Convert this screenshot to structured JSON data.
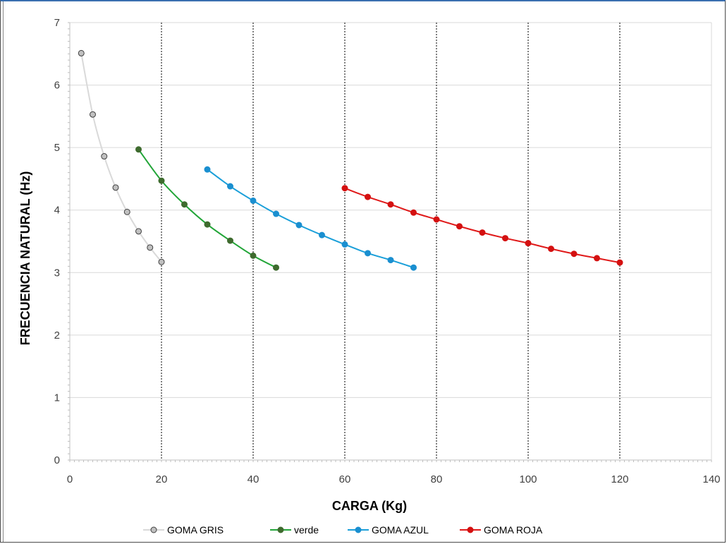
{
  "chart_data": {
    "type": "scatter",
    "xlabel": "CARGA (Kg)",
    "ylabel": "FRECUENCIA NATURAL (Hz)",
    "xlim": [
      0,
      140
    ],
    "ylim": [
      0,
      7
    ],
    "xticks": [
      0,
      20,
      40,
      60,
      80,
      100,
      120,
      140
    ],
    "yticks": [
      0,
      1,
      2,
      3,
      4,
      5,
      6,
      7
    ],
    "grid": "horizontal solid gridlines; dotted vertical lines at x = 20, 40, 60, 80, 100, 120",
    "legend_position": "bottom",
    "series": [
      {
        "name": "GOMA GRIS",
        "color": "#d9d9d9",
        "marker_fill": "#c0c0c0",
        "x": [
          2.5,
          5,
          7.5,
          10,
          12.5,
          15,
          17.5,
          20
        ],
        "y": [
          6.51,
          5.53,
          4.86,
          4.36,
          3.97,
          3.66,
          3.4,
          3.17
        ]
      },
      {
        "name": "verde",
        "color": "#22a538",
        "marker_fill": "#3e6b2e",
        "x": [
          15,
          20,
          25,
          30,
          35,
          40,
          45
        ],
        "y": [
          4.97,
          4.47,
          4.09,
          3.77,
          3.51,
          3.27,
          3.08
        ]
      },
      {
        "name": "GOMA AZUL",
        "color": "#1a9fd9",
        "marker_fill": "#1a8fd0",
        "x": [
          30,
          35,
          40,
          45,
          50,
          55,
          60,
          65,
          70,
          75
        ],
        "y": [
          4.65,
          4.38,
          4.15,
          3.94,
          3.76,
          3.6,
          3.45,
          3.31,
          3.2,
          3.08
        ]
      },
      {
        "name": "GOMA ROJA",
        "color": "#e01a1a",
        "marker_fill": "#d41010",
        "x": [
          60,
          65,
          70,
          75,
          80,
          85,
          90,
          95,
          100,
          105,
          110,
          115,
          120
        ],
        "y": [
          4.35,
          4.21,
          4.09,
          3.96,
          3.85,
          3.74,
          3.64,
          3.55,
          3.47,
          3.38,
          3.3,
          3.23,
          3.16
        ]
      }
    ]
  }
}
